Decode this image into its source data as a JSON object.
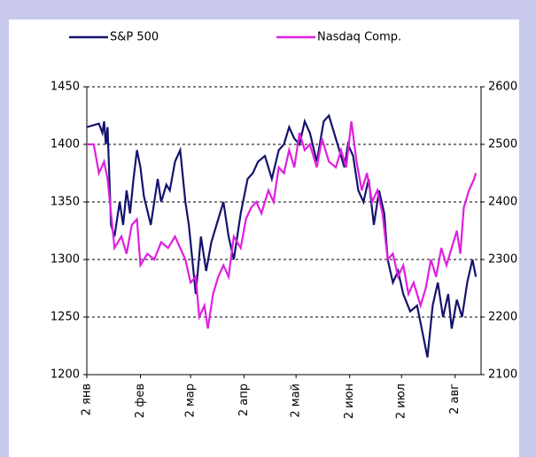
{
  "chart_data": {
    "type": "line",
    "xlim": [
      1,
      229
    ],
    "xticks": [
      {
        "value": 1,
        "label": "2 янв"
      },
      {
        "value": 32,
        "label": "2 фев"
      },
      {
        "value": 61,
        "label": "2 мар"
      },
      {
        "value": 92,
        "label": "2 апр"
      },
      {
        "value": 122,
        "label": "2 май"
      },
      {
        "value": 153,
        "label": "2 июн"
      },
      {
        "value": 183,
        "label": "2 июл"
      },
      {
        "value": 214,
        "label": "2 авг"
      }
    ],
    "ylim": [
      1200,
      1450
    ],
    "yticks": [
      1200,
      1250,
      1300,
      1350,
      1400,
      1450
    ],
    "y2lim": [
      2100,
      2600
    ],
    "y2ticks": [
      2100,
      2200,
      2300,
      2400,
      2500,
      2600
    ],
    "grid": true,
    "legend": "top",
    "series": [
      {
        "name": "S&P 500",
        "color": "#14146e",
        "x": [
          1,
          8,
          10,
          11,
          12,
          13,
          15,
          17,
          20,
          22,
          24,
          26,
          28,
          30,
          32,
          34,
          38,
          42,
          44,
          47,
          49,
          52,
          55,
          58,
          60,
          62,
          64,
          67,
          70,
          73,
          76,
          80,
          83,
          86,
          90,
          94,
          97,
          100,
          104,
          108,
          112,
          115,
          118,
          121,
          124,
          127,
          130,
          134,
          138,
          141,
          145,
          148,
          150,
          152,
          155,
          158,
          161,
          164,
          167,
          170,
          173,
          175,
          178,
          181,
          184,
          188,
          192,
          196,
          198,
          201,
          204,
          207,
          210,
          212,
          215,
          218,
          221,
          224,
          226
        ],
        "values": [
          1415,
          1418,
          1410,
          1420,
          1400,
          1415,
          1330,
          1320,
          1350,
          1330,
          1360,
          1340,
          1370,
          1395,
          1380,
          1355,
          1330,
          1370,
          1350,
          1365,
          1360,
          1385,
          1395,
          1350,
          1330,
          1300,
          1270,
          1320,
          1290,
          1315,
          1330,
          1350,
          1320,
          1300,
          1340,
          1370,
          1375,
          1385,
          1390,
          1370,
          1395,
          1400,
          1415,
          1405,
          1400,
          1420,
          1410,
          1385,
          1420,
          1425,
          1405,
          1390,
          1380,
          1400,
          1390,
          1360,
          1350,
          1370,
          1330,
          1360,
          1340,
          1300,
          1280,
          1290,
          1270,
          1255,
          1260,
          1230,
          1215,
          1260,
          1280,
          1250,
          1270,
          1240,
          1265,
          1250,
          1280,
          1300,
          1285
        ]
      },
      {
        "name": "Nasdaq Comp.",
        "color": "#e020e0",
        "axis": "y2",
        "x": [
          1,
          5,
          8,
          11,
          13,
          15,
          17,
          21,
          24,
          27,
          30,
          32,
          36,
          40,
          44,
          48,
          52,
          55,
          58,
          61,
          64,
          66,
          69,
          71,
          74,
          77,
          80,
          83,
          86,
          90,
          93,
          96,
          99,
          102,
          106,
          109,
          112,
          115,
          118,
          121,
          124,
          127,
          130,
          134,
          137,
          141,
          145,
          148,
          151,
          154,
          157,
          160,
          163,
          166,
          169,
          172,
          175,
          178,
          181,
          184,
          187,
          190,
          194,
          197,
          200,
          203,
          206,
          209,
          212,
          215,
          217,
          219,
          222,
          225,
          226
        ],
        "values": [
          2500,
          2500,
          2450,
          2470,
          2440,
          2380,
          2320,
          2340,
          2310,
          2360,
          2370,
          2290,
          2310,
          2300,
          2330,
          2320,
          2340,
          2320,
          2300,
          2260,
          2270,
          2200,
          2220,
          2180,
          2240,
          2270,
          2290,
          2270,
          2340,
          2320,
          2370,
          2390,
          2400,
          2380,
          2420,
          2400,
          2460,
          2450,
          2490,
          2460,
          2520,
          2490,
          2500,
          2460,
          2510,
          2470,
          2460,
          2490,
          2460,
          2540,
          2470,
          2420,
          2450,
          2400,
          2420,
          2380,
          2300,
          2310,
          2270,
          2290,
          2240,
          2260,
          2220,
          2250,
          2300,
          2270,
          2320,
          2290,
          2320,
          2350,
          2310,
          2390,
          2420,
          2440,
          2450
        ]
      }
    ]
  }
}
